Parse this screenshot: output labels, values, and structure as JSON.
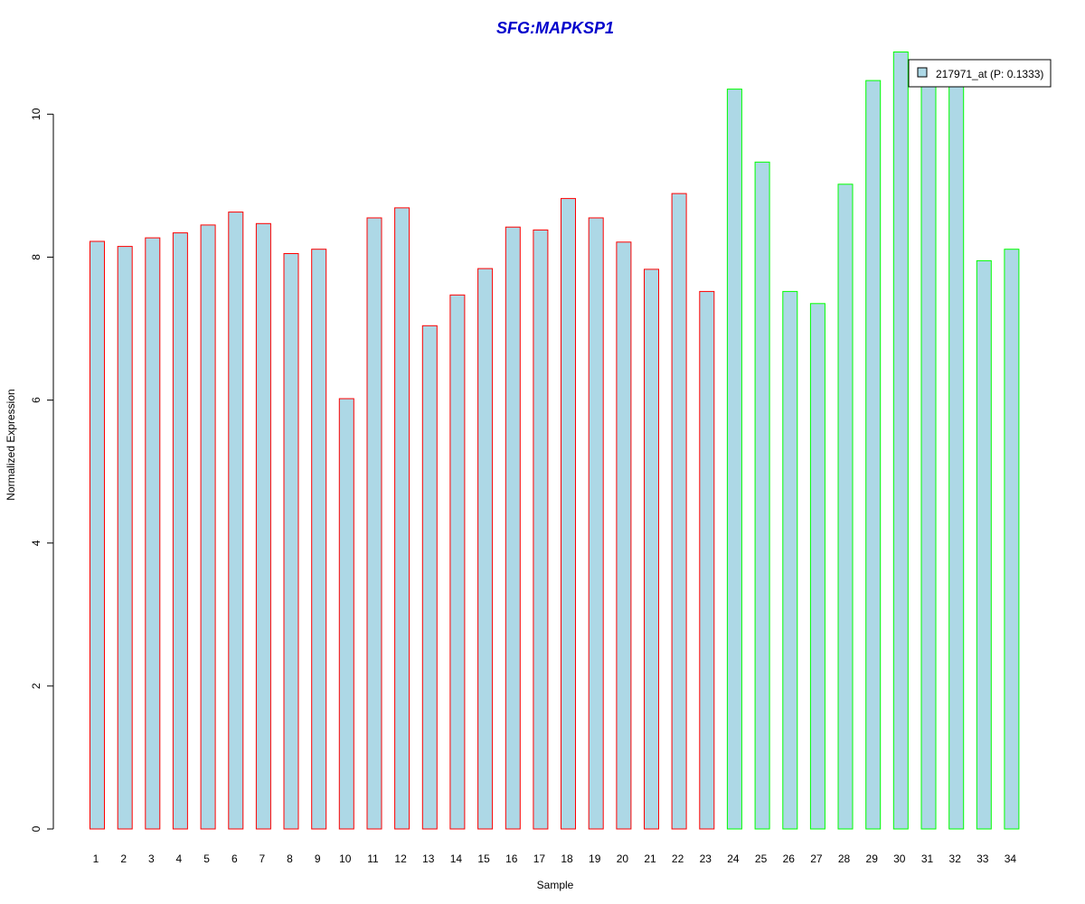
{
  "chart_data": {
    "type": "bar",
    "title": "SFG:MAPKSP1",
    "xlabel": "Sample",
    "ylabel": "Normalized Expression",
    "categories": [
      "1",
      "2",
      "3",
      "4",
      "5",
      "6",
      "7",
      "8",
      "9",
      "10",
      "11",
      "12",
      "13",
      "14",
      "15",
      "16",
      "17",
      "18",
      "19",
      "20",
      "21",
      "22",
      "23",
      "24",
      "25",
      "26",
      "27",
      "28",
      "29",
      "30",
      "31",
      "32",
      "33",
      "34"
    ],
    "series": [
      {
        "name": "217971_at (P: 0.1333)",
        "values": [
          8.22,
          8.15,
          8.27,
          8.34,
          8.45,
          8.63,
          8.47,
          8.05,
          8.11,
          6.02,
          8.55,
          8.69,
          7.04,
          7.47,
          7.84,
          8.42,
          8.38,
          8.82,
          8.55,
          8.21,
          7.83,
          8.89,
          7.52,
          10.35,
          9.33,
          7.52,
          7.35,
          9.02,
          10.47,
          10.87,
          10.45,
          10.48,
          7.95,
          8.11
        ]
      }
    ],
    "group_colors": [
      "#ff0000",
      "#ff0000",
      "#ff0000",
      "#ff0000",
      "#ff0000",
      "#ff0000",
      "#ff0000",
      "#ff0000",
      "#ff0000",
      "#ff0000",
      "#ff0000",
      "#ff0000",
      "#ff0000",
      "#ff0000",
      "#ff0000",
      "#ff0000",
      "#ff0000",
      "#ff0000",
      "#ff0000",
      "#ff0000",
      "#ff0000",
      "#ff0000",
      "#ff0000",
      "#00ff00",
      "#00ff00",
      "#00ff00",
      "#00ff00",
      "#00ff00",
      "#00ff00",
      "#00ff00",
      "#00ff00",
      "#00ff00",
      "#00ff00",
      "#00ff00"
    ],
    "bar_fill": "#add8e6",
    "title_color": "#0000cc",
    "ylim": [
      0,
      11
    ],
    "yticks": [
      0,
      2,
      4,
      6,
      8,
      10
    ],
    "grid": false,
    "legend_position": "top-right"
  }
}
